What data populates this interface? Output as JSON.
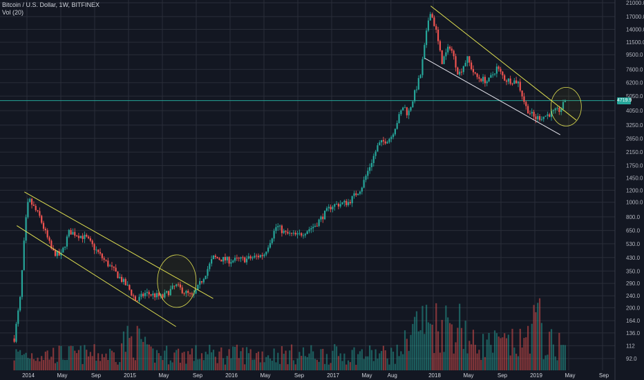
{
  "header": {
    "title": "Bitcoin / U.S. Dollar, 1W, BITFINEX",
    "volume_label": "Vol (20)"
  },
  "last_price_tag": "4719.9",
  "colors": {
    "background": "#131722",
    "grid": "#2a2e39",
    "up": "#26a69a",
    "down": "#ef5350",
    "channel": "#e0e051",
    "support": "#e8e8f0",
    "price_line": "#26a69a"
  },
  "chart_data": {
    "type": "candlestick",
    "title": "Bitcoin / U.S. Dollar, 1W, BITFINEX",
    "y_scale": "log",
    "y_ticks": [
      92.0,
      112,
      136.0,
      164.0,
      200.0,
      240.0,
      290.0,
      350.0,
      430.0,
      530.0,
      650.0,
      800.0,
      1000.0,
      1200.0,
      1450.0,
      1750.0,
      2150.0,
      2650.0,
      3250.0,
      4050.0,
      5050.0,
      6200.0,
      7600.0,
      9500.0,
      11500.0,
      14000.0,
      17000.0,
      21000.0
    ],
    "x_ticks": [
      "2014",
      "May",
      "Sep",
      "2015",
      "May",
      "Sep",
      "2016",
      "May",
      "Sep",
      "2017",
      "May",
      "Aug",
      "2018",
      "May",
      "Sep",
      "2019",
      "May",
      "Sep"
    ],
    "x_ticks_month_index": [
      0,
      4,
      8,
      12,
      16,
      20,
      24,
      28,
      32,
      36,
      40,
      43,
      48,
      52,
      56,
      60,
      64,
      68
    ],
    "x_start": "2013-11",
    "last_price": 4719.9,
    "price_anchors": [
      {
        "month": -1.5,
        "price": 125
      },
      {
        "month": -0.8,
        "price": 230
      },
      {
        "month": -0.2,
        "price": 700
      },
      {
        "month": 0.2,
        "price": 1050
      },
      {
        "month": 1.5,
        "price": 800
      },
      {
        "month": 3.0,
        "price": 470
      },
      {
        "month": 4.0,
        "price": 440
      },
      {
        "month": 5.0,
        "price": 640
      },
      {
        "month": 7.0,
        "price": 580
      },
      {
        "month": 9.0,
        "price": 420
      },
      {
        "month": 10.3,
        "price": 350
      },
      {
        "month": 12.0,
        "price": 270
      },
      {
        "month": 12.9,
        "price": 220
      },
      {
        "month": 14.0,
        "price": 250
      },
      {
        "month": 16.0,
        "price": 235
      },
      {
        "month": 17.6,
        "price": 280
      },
      {
        "month": 18.6,
        "price": 255
      },
      {
        "month": 19.6,
        "price": 235
      },
      {
        "month": 21.0,
        "price": 330
      },
      {
        "month": 22.0,
        "price": 430
      },
      {
        "month": 24.0,
        "price": 410
      },
      {
        "month": 26.0,
        "price": 420
      },
      {
        "month": 28.0,
        "price": 450
      },
      {
        "month": 29.5,
        "price": 700
      },
      {
        "month": 30.5,
        "price": 620
      },
      {
        "month": 32.0,
        "price": 600
      },
      {
        "month": 34.0,
        "price": 700
      },
      {
        "month": 36.0,
        "price": 950
      },
      {
        "month": 38.0,
        "price": 1000
      },
      {
        "month": 39.5,
        "price": 1250
      },
      {
        "month": 41.5,
        "price": 2400
      },
      {
        "month": 43.0,
        "price": 2700
      },
      {
        "month": 44.5,
        "price": 4400
      },
      {
        "month": 45.0,
        "price": 3800
      },
      {
        "month": 46.5,
        "price": 7000
      },
      {
        "month": 47.6,
        "price": 19000
      },
      {
        "month": 48.3,
        "price": 14000
      },
      {
        "month": 49.0,
        "price": 8500
      },
      {
        "month": 50.0,
        "price": 11000
      },
      {
        "month": 51.0,
        "price": 7000
      },
      {
        "month": 52.0,
        "price": 9000
      },
      {
        "month": 53.0,
        "price": 6800
      },
      {
        "month": 54.5,
        "price": 6300
      },
      {
        "month": 55.5,
        "price": 7800
      },
      {
        "month": 56.5,
        "price": 6500
      },
      {
        "month": 58.0,
        "price": 6300
      },
      {
        "month": 59.0,
        "price": 4200
      },
      {
        "month": 60.0,
        "price": 3600
      },
      {
        "month": 61.0,
        "price": 3700
      },
      {
        "month": 62.0,
        "price": 3900
      },
      {
        "month": 63.0,
        "price": 4100
      },
      {
        "month": 63.7,
        "price": 4719.9
      }
    ],
    "trend_lines": [
      {
        "name": "channel-2014-top",
        "p1": {
          "month": -0.3,
          "price": 1170
        },
        "p2": {
          "month": 22.0,
          "price": 230
        }
      },
      {
        "name": "channel-2014-bottom",
        "p1": {
          "month": -1.2,
          "price": 700
        },
        "p2": {
          "month": 17.6,
          "price": 150
        }
      },
      {
        "name": "channel-2018-top",
        "p1": {
          "month": 47.7,
          "price": 20000
        },
        "p2": {
          "month": 64.9,
          "price": 3500
        }
      },
      {
        "name": "channel-2018-bottom",
        "p1": {
          "month": 47.0,
          "price": 9000
        },
        "p2": {
          "month": 63.0,
          "price": 2800
        }
      }
    ],
    "ellipses": [
      {
        "name": "breakout-2015",
        "center": {
          "month": 17.7,
          "price": 300
        }
      },
      {
        "name": "breakout-2019",
        "center": {
          "month": 63.7,
          "price": 4300
        }
      }
    ]
  }
}
